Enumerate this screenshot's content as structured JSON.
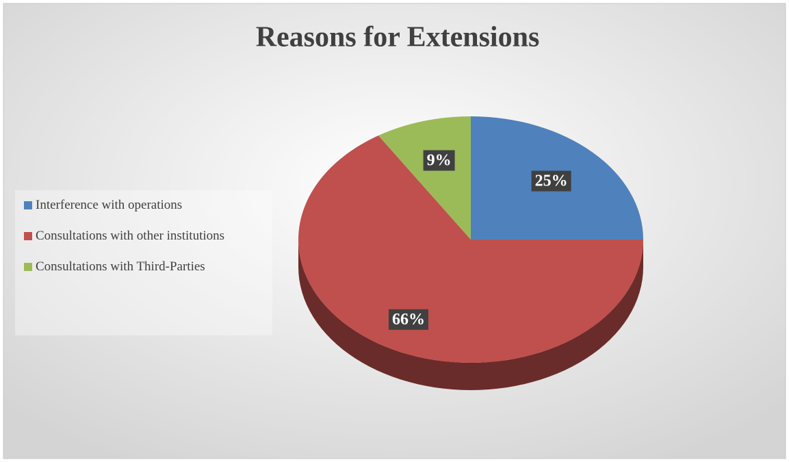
{
  "chart_data": {
    "type": "pie",
    "title": "Reasons for Extensions",
    "categories": [
      "Interference with operations",
      "Consultations with other institutions",
      "Consultations with Third-Parties"
    ],
    "values": [
      25,
      66,
      9
    ],
    "value_labels": [
      "25%",
      "66%",
      "9%"
    ],
    "colors": [
      "#4f81bd",
      "#c0504d",
      "#9bbb59"
    ],
    "legend": "left"
  }
}
